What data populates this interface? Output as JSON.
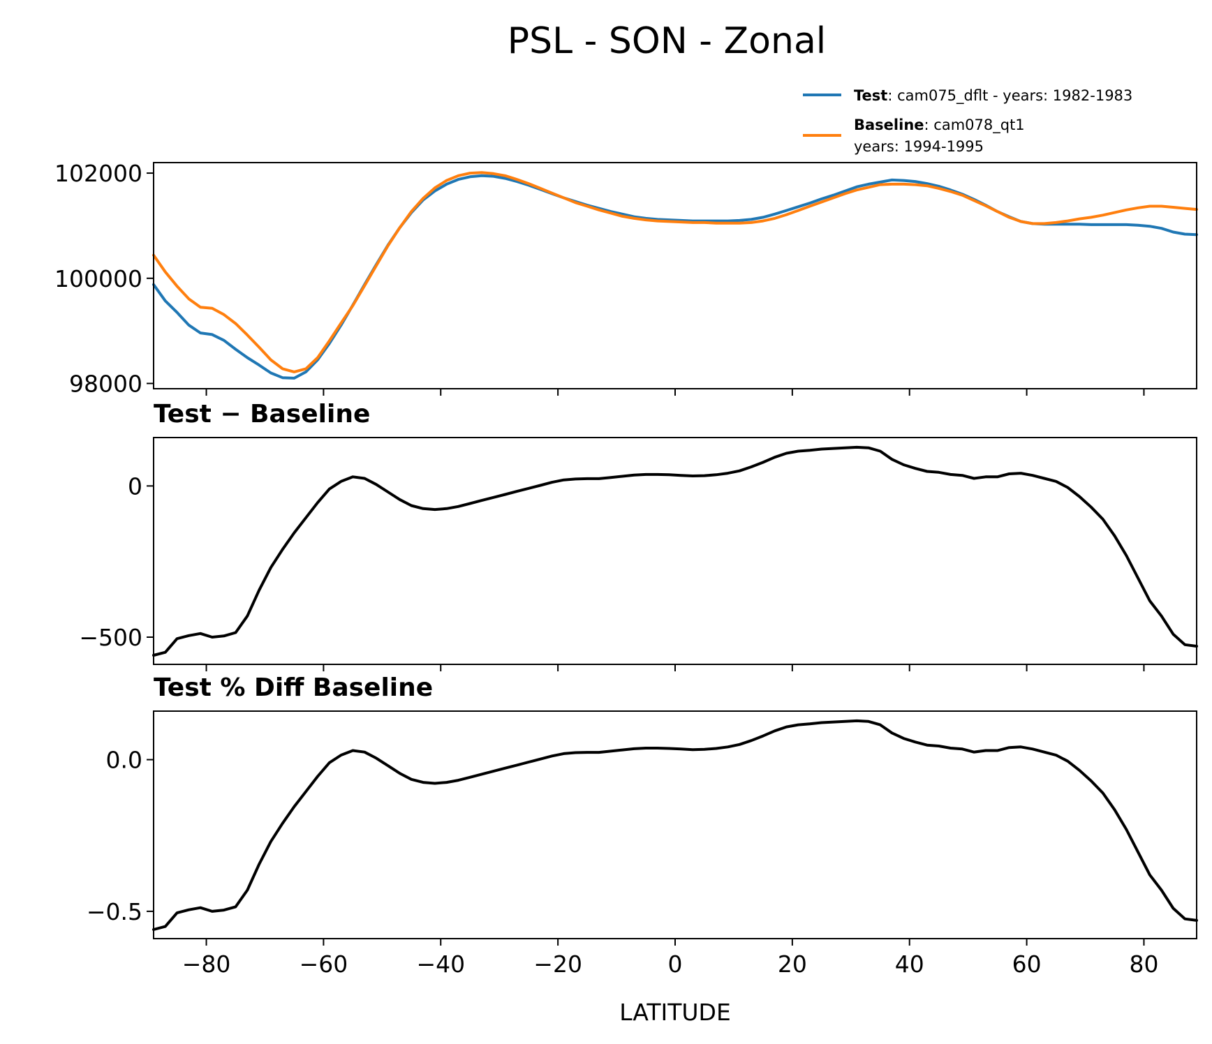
{
  "figure": {
    "title": "PSL - SON - Zonal",
    "xlabel": "LATITUDE"
  },
  "legend": {
    "entries": [
      {
        "bold": "Test",
        "sep": ": ",
        "lines": [
          "cam075_dflt - years: 1982-1983"
        ],
        "color": "#1f77b4"
      },
      {
        "bold": "Baseline",
        "sep": ": ",
        "lines": [
          "cam078_qt1",
          "years: 1994-1995"
        ],
        "color": "#ff7f0e"
      }
    ]
  },
  "chart_data": [
    {
      "type": "line",
      "title": "",
      "xlabel": "",
      "ylabel": "",
      "xlim": [
        -89,
        89
      ],
      "ylim": [
        97900,
        102200
      ],
      "yticks": [
        98000,
        100000,
        102000
      ],
      "yticklabels": [
        "98000",
        "100000",
        "102000"
      ],
      "xticks": [
        -80,
        -60,
        -40,
        -20,
        0,
        20,
        40,
        60,
        80
      ],
      "show_xticklabels": false,
      "grid": false,
      "legend": "top-right, outside above axes",
      "series": [
        {
          "name": "Test",
          "color": "#1f77b4",
          "x": [
            -89,
            -87,
            -85,
            -83,
            -81,
            -79,
            -77,
            -75,
            -73,
            -71,
            -69,
            -67,
            -65,
            -63,
            -61,
            -59,
            -57,
            -55,
            -53,
            -51,
            -49,
            -47,
            -45,
            -43,
            -41,
            -39,
            -37,
            -35,
            -33,
            -31,
            -29,
            -27,
            -25,
            -23,
            -21,
            -19,
            -17,
            -15,
            -13,
            -11,
            -9,
            -7,
            -5,
            -3,
            -1,
            1,
            3,
            5,
            7,
            9,
            11,
            13,
            15,
            17,
            19,
            21,
            23,
            25,
            27,
            29,
            31,
            33,
            35,
            37,
            39,
            41,
            43,
            45,
            47,
            49,
            51,
            53,
            55,
            57,
            59,
            61,
            63,
            65,
            67,
            69,
            71,
            73,
            75,
            77,
            79,
            81,
            83,
            85,
            87,
            89
          ],
          "values": [
            99880,
            99570,
            99350,
            99110,
            98960,
            98930,
            98820,
            98650,
            98490,
            98350,
            98200,
            98110,
            98100,
            98220,
            98450,
            98760,
            99110,
            99490,
            99880,
            100260,
            100630,
            100960,
            101250,
            101490,
            101660,
            101790,
            101880,
            101930,
            101950,
            101940,
            101900,
            101840,
            101770,
            101690,
            101610,
            101530,
            101460,
            101390,
            101330,
            101270,
            101220,
            101170,
            101140,
            101120,
            101110,
            101100,
            101090,
            101090,
            101090,
            101090,
            101100,
            101120,
            101160,
            101220,
            101290,
            101360,
            101430,
            101510,
            101580,
            101660,
            101740,
            101790,
            101830,
            101870,
            101860,
            101840,
            101800,
            101750,
            101680,
            101600,
            101500,
            101390,
            101270,
            101170,
            101080,
            101040,
            101030,
            101030,
            101030,
            101030,
            101020,
            101020,
            101020,
            101020,
            101010,
            100990,
            100950,
            100880,
            100840,
            100830
          ]
        },
        {
          "name": "Baseline",
          "color": "#ff7f0e",
          "x": [
            -89,
            -87,
            -85,
            -83,
            -81,
            -79,
            -77,
            -75,
            -73,
            -71,
            -69,
            -67,
            -65,
            -63,
            -61,
            -59,
            -57,
            -55,
            -53,
            -51,
            -49,
            -47,
            -45,
            -43,
            -41,
            -39,
            -37,
            -35,
            -33,
            -31,
            -29,
            -27,
            -25,
            -23,
            -21,
            -19,
            -17,
            -15,
            -13,
            -11,
            -9,
            -7,
            -5,
            -3,
            -1,
            1,
            3,
            5,
            7,
            9,
            11,
            13,
            15,
            17,
            19,
            21,
            23,
            25,
            27,
            29,
            31,
            33,
            35,
            37,
            39,
            41,
            43,
            45,
            47,
            49,
            51,
            53,
            55,
            57,
            59,
            61,
            63,
            65,
            67,
            69,
            71,
            73,
            75,
            77,
            79,
            81,
            83,
            85,
            87,
            89
          ],
          "values": [
            100440,
            100120,
            99850,
            99610,
            99450,
            99430,
            99310,
            99140,
            98920,
            98690,
            98450,
            98280,
            98220,
            98280,
            98490,
            98810,
            99150,
            99480,
            99860,
            100240,
            100620,
            100960,
            101270,
            101520,
            101720,
            101860,
            101950,
            102000,
            102010,
            101990,
            101950,
            101880,
            101800,
            101710,
            101620,
            101530,
            101440,
            101370,
            101300,
            101240,
            101180,
            101140,
            101110,
            101090,
            101080,
            101070,
            101060,
            101060,
            101050,
            101050,
            101050,
            101060,
            101090,
            101140,
            101210,
            101290,
            101370,
            101450,
            101530,
            101610,
            101680,
            101730,
            101780,
            101790,
            101790,
            101780,
            101760,
            101710,
            101650,
            101580,
            101480,
            101380,
            101270,
            101160,
            101080,
            101040,
            101040,
            101060,
            101090,
            101130,
            101160,
            101200,
            101250,
            101300,
            101340,
            101370,
            101370,
            101350,
            101330,
            101310
          ]
        }
      ]
    },
    {
      "type": "line",
      "title": "Test − Baseline",
      "xlabel": "",
      "ylabel": "",
      "xlim": [
        -89,
        89
      ],
      "ylim": [
        -590,
        160
      ],
      "yticks": [
        -500,
        0
      ],
      "yticklabels": [
        "−500",
        "0"
      ],
      "xticks": [
        -80,
        -60,
        -40,
        -20,
        0,
        20,
        40,
        60,
        80
      ],
      "show_xticklabels": false,
      "grid": false,
      "series": [
        {
          "color": "#000000",
          "x": [
            -89,
            -87,
            -85,
            -83,
            -81,
            -79,
            -77,
            -75,
            -73,
            -71,
            -69,
            -67,
            -65,
            -63,
            -61,
            -59,
            -57,
            -55,
            -53,
            -51,
            -49,
            -47,
            -45,
            -43,
            -41,
            -39,
            -37,
            -35,
            -33,
            -31,
            -29,
            -27,
            -25,
            -23,
            -21,
            -19,
            -17,
            -15,
            -13,
            -11,
            -9,
            -7,
            -5,
            -3,
            -1,
            1,
            3,
            5,
            7,
            9,
            11,
            13,
            15,
            17,
            19,
            21,
            23,
            25,
            27,
            29,
            31,
            33,
            35,
            37,
            39,
            41,
            43,
            45,
            47,
            49,
            51,
            53,
            55,
            57,
            59,
            61,
            63,
            65,
            67,
            69,
            71,
            73,
            75,
            77,
            79,
            81,
            83,
            85,
            87,
            89
          ],
          "values": [
            -560,
            -550,
            -505,
            -495,
            -488,
            -500,
            -496,
            -485,
            -430,
            -345,
            -270,
            -210,
            -155,
            -105,
            -55,
            -10,
            15,
            30,
            25,
            5,
            -20,
            -45,
            -65,
            -75,
            -78,
            -75,
            -68,
            -58,
            -48,
            -38,
            -28,
            -18,
            -8,
            2,
            12,
            20,
            23,
            24,
            24,
            28,
            32,
            36,
            38,
            38,
            37,
            35,
            33,
            34,
            37,
            42,
            50,
            63,
            78,
            95,
            108,
            115,
            118,
            122,
            124,
            126,
            128,
            126,
            115,
            88,
            70,
            58,
            48,
            45,
            38,
            35,
            25,
            30,
            30,
            40,
            42,
            35,
            25,
            15,
            -5,
            -35,
            -70,
            -110,
            -165,
            -230,
            -305,
            -380,
            -430,
            -490,
            -525,
            -530
          ]
        }
      ]
    },
    {
      "type": "line",
      "title": "Test % Diff Baseline",
      "xlabel": "LATITUDE",
      "ylabel": "",
      "xlim": [
        -89,
        89
      ],
      "ylim": [
        -0.59,
        0.16
      ],
      "yticks": [
        -0.5,
        0.0
      ],
      "yticklabels": [
        "−0.5",
        "0.0"
      ],
      "xticks": [
        -80,
        -60,
        -40,
        -20,
        0,
        20,
        40,
        60,
        80
      ],
      "xticklabels": [
        "−80",
        "−60",
        "−40",
        "−20",
        "0",
        "20",
        "40",
        "60",
        "80"
      ],
      "show_xticklabels": true,
      "grid": false,
      "series": [
        {
          "color": "#000000",
          "x": [
            -89,
            -87,
            -85,
            -83,
            -81,
            -79,
            -77,
            -75,
            -73,
            -71,
            -69,
            -67,
            -65,
            -63,
            -61,
            -59,
            -57,
            -55,
            -53,
            -51,
            -49,
            -47,
            -45,
            -43,
            -41,
            -39,
            -37,
            -35,
            -33,
            -31,
            -29,
            -27,
            -25,
            -23,
            -21,
            -19,
            -17,
            -15,
            -13,
            -11,
            -9,
            -7,
            -5,
            -3,
            -1,
            1,
            3,
            5,
            7,
            9,
            11,
            13,
            15,
            17,
            19,
            21,
            23,
            25,
            27,
            29,
            31,
            33,
            35,
            37,
            39,
            41,
            43,
            45,
            47,
            49,
            51,
            53,
            55,
            57,
            59,
            61,
            63,
            65,
            67,
            69,
            71,
            73,
            75,
            77,
            79,
            81,
            83,
            85,
            87,
            89
          ],
          "values": [
            -0.56,
            -0.55,
            -0.505,
            -0.495,
            -0.488,
            -0.5,
            -0.496,
            -0.485,
            -0.43,
            -0.345,
            -0.27,
            -0.21,
            -0.155,
            -0.105,
            -0.055,
            -0.01,
            0.015,
            0.03,
            0.025,
            0.005,
            -0.02,
            -0.045,
            -0.065,
            -0.075,
            -0.078,
            -0.075,
            -0.068,
            -0.058,
            -0.048,
            -0.038,
            -0.028,
            -0.018,
            -0.008,
            0.002,
            0.012,
            0.02,
            0.023,
            0.024,
            0.024,
            0.028,
            0.032,
            0.036,
            0.038,
            0.038,
            0.037,
            0.035,
            0.033,
            0.034,
            0.037,
            0.042,
            0.05,
            0.063,
            0.078,
            0.095,
            0.108,
            0.115,
            0.118,
            0.122,
            0.124,
            0.126,
            0.128,
            0.126,
            0.115,
            0.088,
            0.07,
            0.058,
            0.048,
            0.045,
            0.038,
            0.035,
            0.025,
            0.03,
            0.03,
            0.04,
            0.042,
            0.035,
            0.025,
            0.015,
            -0.005,
            -0.035,
            -0.07,
            -0.11,
            -0.165,
            -0.23,
            -0.305,
            -0.38,
            -0.43,
            -0.49,
            -0.525,
            -0.53
          ]
        }
      ]
    }
  ]
}
